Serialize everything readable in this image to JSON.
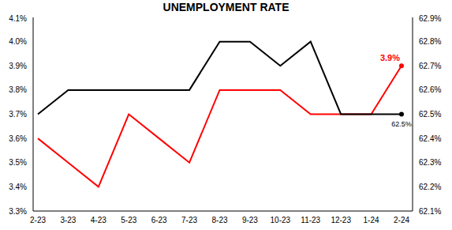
{
  "chart_data": {
    "type": "line",
    "title": "UNEMPLOYMENT RATE",
    "categories": [
      "2-23",
      "3-23",
      "4-23",
      "5-23",
      "6-23",
      "7-23",
      "8-23",
      "9-23",
      "10-23",
      "11-23",
      "12-23",
      "1-24",
      "2-24"
    ],
    "series": [
      {
        "color": "#ff0000",
        "axis": "y",
        "values": [
          3.6,
          3.5,
          3.4,
          3.7,
          3.6,
          3.5,
          3.8,
          3.8,
          3.8,
          3.7,
          3.7,
          3.7,
          3.9
        ],
        "value_labels": [
          null,
          null,
          null,
          null,
          null,
          null,
          null,
          null,
          null,
          null,
          null,
          null,
          "3.9%"
        ]
      },
      {
        "color": "#000000",
        "axis": "y2",
        "values": [
          62.5,
          62.6,
          62.6,
          62.6,
          62.6,
          62.6,
          62.8,
          62.8,
          62.7,
          62.8,
          62.5,
          62.5,
          62.5
        ],
        "value_labels": [
          null,
          null,
          null,
          null,
          null,
          null,
          null,
          null,
          null,
          null,
          null,
          null,
          "62.5%"
        ]
      }
    ],
    "ylim": [
      3.3,
      4.1
    ],
    "yticks": [
      {
        "value": 3.3,
        "label": "3.3%"
      },
      {
        "value": 3.4,
        "label": "3.4%"
      },
      {
        "value": 3.5,
        "label": "3.5%"
      },
      {
        "value": 3.6,
        "label": "3.6%"
      },
      {
        "value": 3.7,
        "label": "3.7%"
      },
      {
        "value": 3.8,
        "label": "3.8%"
      },
      {
        "value": 3.9,
        "label": "3.9%"
      },
      {
        "value": 4.0,
        "label": "4.0%"
      },
      {
        "value": 4.1,
        "label": "4.1%"
      }
    ],
    "y2lim": [
      62.1,
      62.9
    ],
    "y2ticks": [
      {
        "value": 62.1,
        "label": "62.1%"
      },
      {
        "value": 62.2,
        "label": "62.2%"
      },
      {
        "value": 62.3,
        "label": "62.3%"
      },
      {
        "value": 62.4,
        "label": "62.4%"
      },
      {
        "value": 62.5,
        "label": "62.5%"
      },
      {
        "value": 62.6,
        "label": "62.6%"
      },
      {
        "value": 62.7,
        "label": "62.7%"
      },
      {
        "value": 62.8,
        "label": "62.8%"
      },
      {
        "value": 62.9,
        "label": "62.9%"
      }
    ],
    "grid": false
  }
}
